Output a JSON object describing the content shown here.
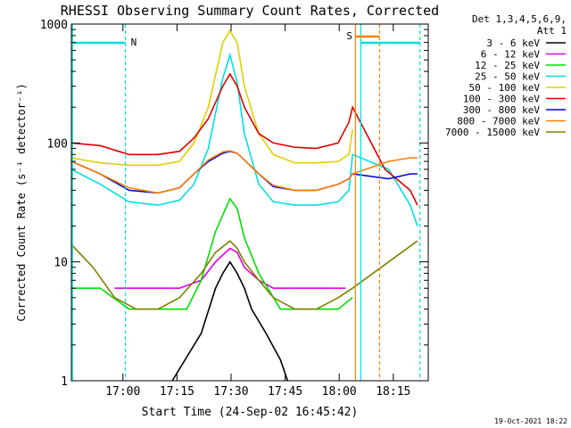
{
  "title": "RHESSI Observing Summary Count Rates, Corrected",
  "footer_date": "19-Oct-2021 18:22",
  "legend": {
    "header": [
      "Det 1,3,4,5,6,9,",
      "Att 1"
    ],
    "entries": [
      {
        "label": "3 - 6 keV",
        "color": "#000000"
      },
      {
        "label": "6 - 12 keV",
        "color": "#e000e0"
      },
      {
        "label": "12 - 25 keV",
        "color": "#00e000"
      },
      {
        "label": "25 - 50 keV",
        "color": "#00e0e0"
      },
      {
        "label": "50 - 100 keV",
        "color": "#e0d000"
      },
      {
        "label": "100 - 300 keV",
        "color": "#e00000"
      },
      {
        "label": "300 - 800 keV",
        "color": "#0000e0"
      },
      {
        "label": "800 - 7000 keV",
        "color": "#ff8000"
      },
      {
        "label": "7000 - 15000 keV",
        "color": "#808000"
      }
    ]
  },
  "markers": [
    {
      "label": "N",
      "color": "#00e0e0"
    },
    {
      "label": "S",
      "color": "#ff8000"
    }
  ],
  "chart_data": {
    "type": "line",
    "title": "RHESSI Observing Summary Count Rates, Corrected",
    "xlabel": "Start Time (24-Sep-02 16:45:42)",
    "ylabel": "Corrected Count Rate (s⁻¹ detector⁻¹)",
    "yscale": "log",
    "ylim": [
      1,
      1000
    ],
    "xlim_minutes_from_start": [
      0,
      99
    ],
    "x_ticks": [
      {
        "label": "17:00",
        "minutes": 14.3
      },
      {
        "label": "17:15",
        "minutes": 29.3
      },
      {
        "label": "17:30",
        "minutes": 44.3
      },
      {
        "label": "17:45",
        "minutes": 59.3
      },
      {
        "label": "18:00",
        "minutes": 74.3
      },
      {
        "label": "18:15",
        "minutes": 89.3
      }
    ],
    "y_ticks": [
      {
        "label": "1",
        "value": 1
      },
      {
        "label": "10",
        "value": 10
      },
      {
        "label": "100",
        "value": 100
      },
      {
        "label": "1000",
        "value": 1000
      }
    ],
    "series": [
      {
        "name": "3 - 6 keV",
        "color": "#000000",
        "x": [
          28,
          36,
          40,
          42,
          44,
          46,
          48,
          50,
          54,
          58,
          60
        ],
        "y": [
          1,
          2.5,
          6,
          8,
          10,
          8,
          6,
          4,
          2.5,
          1.5,
          1
        ]
      },
      {
        "name": "6 - 12 keV",
        "color": "#e000e0",
        "x": [
          12,
          20,
          30,
          36,
          40,
          44,
          46,
          48,
          52,
          56,
          60,
          66,
          72,
          76
        ],
        "y": [
          6,
          6,
          6,
          7,
          10,
          13,
          12,
          9,
          7,
          6,
          6,
          6,
          6,
          6
        ]
      },
      {
        "name": "12 - 25 keV",
        "color": "#00e000",
        "x": [
          0,
          8,
          16,
          24,
          32,
          36,
          40,
          44,
          46,
          48,
          52,
          58,
          66,
          74,
          78
        ],
        "y": [
          6,
          6,
          4,
          4,
          4,
          7,
          18,
          34,
          28,
          16,
          8,
          4,
          4,
          4,
          5
        ]
      },
      {
        "name": "25 - 50 keV",
        "color": "#00e0e0",
        "x": [
          0,
          8,
          16,
          24,
          30,
          34,
          38,
          42,
          44,
          46,
          48,
          52,
          56,
          62,
          68,
          74,
          77,
          78,
          88,
          94,
          96
        ],
        "y": [
          60,
          45,
          32,
          30,
          33,
          45,
          90,
          350,
          550,
          320,
          120,
          45,
          32,
          30,
          30,
          32,
          40,
          80,
          60,
          30,
          20
        ]
      },
      {
        "name": "50 - 100 keV",
        "color": "#e0d000",
        "x": [
          0,
          8,
          16,
          24,
          30,
          34,
          38,
          42,
          44,
          46,
          48,
          52,
          56,
          62,
          68,
          74,
          77,
          78
        ],
        "y": [
          75,
          68,
          65,
          65,
          70,
          100,
          200,
          700,
          880,
          700,
          300,
          120,
          80,
          68,
          68,
          70,
          80,
          130
        ]
      },
      {
        "name": "100 - 300 keV",
        "color": "#e00000",
        "x": [
          0,
          8,
          16,
          24,
          30,
          34,
          38,
          42,
          44,
          46,
          48,
          52,
          56,
          62,
          68,
          74,
          77,
          78,
          87,
          94,
          96
        ],
        "y": [
          100,
          95,
          80,
          80,
          85,
          110,
          160,
          300,
          380,
          300,
          200,
          120,
          100,
          92,
          90,
          100,
          150,
          200,
          60,
          40,
          30
        ]
      },
      {
        "name": "300 - 800 keV",
        "color": "#0000e0",
        "x": [
          0,
          8,
          16,
          24,
          30,
          34,
          38,
          42,
          44,
          46,
          48,
          52,
          56,
          62,
          68,
          74,
          77,
          78,
          88,
          94,
          96
        ],
        "y": [
          70,
          55,
          40,
          38,
          42,
          55,
          70,
          82,
          85,
          82,
          72,
          55,
          43,
          40,
          40,
          45,
          50,
          55,
          50,
          55,
          55
        ]
      },
      {
        "name": "800 - 7000 keV",
        "color": "#ff8000",
        "x": [
          0,
          8,
          16,
          24,
          30,
          34,
          38,
          42,
          44,
          46,
          48,
          52,
          56,
          62,
          68,
          74,
          77,
          78,
          88,
          94,
          96
        ],
        "y": [
          70,
          55,
          42,
          38,
          42,
          55,
          72,
          84,
          86,
          82,
          72,
          55,
          44,
          40,
          40,
          45,
          50,
          55,
          70,
          75,
          75
        ]
      },
      {
        "name": "7000 - 15000 keV",
        "color": "#808000",
        "x": [
          0,
          6,
          12,
          18,
          24,
          30,
          36,
          40,
          44,
          46,
          48,
          52,
          56,
          62,
          68,
          74,
          78,
          88,
          96
        ],
        "y": [
          14,
          9,
          5,
          4,
          4,
          5,
          8,
          12,
          15,
          13,
          10,
          7,
          5,
          4,
          4,
          5,
          6,
          10,
          15
        ]
      }
    ]
  }
}
